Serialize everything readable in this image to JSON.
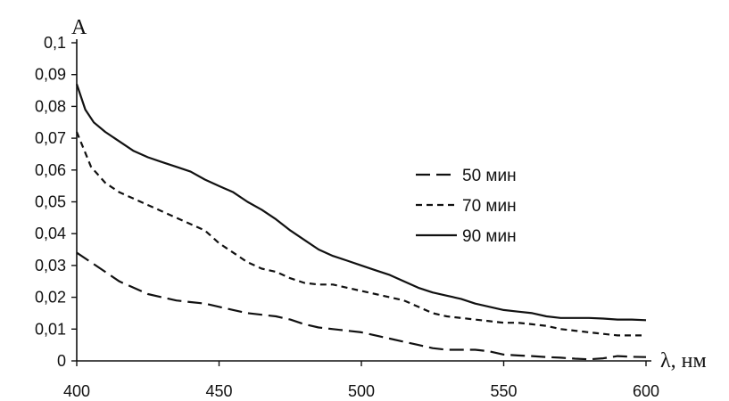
{
  "chart_data": {
    "type": "line",
    "title": "",
    "xlabel": "λ, нм",
    "ylabel": "A",
    "xlim": [
      400,
      600
    ],
    "ylim": [
      0,
      0.1
    ],
    "x_ticks": [
      "400",
      "450",
      "500",
      "550",
      "600"
    ],
    "y_ticks": [
      "0",
      "0,01",
      "0,02",
      "0,03",
      "0,04",
      "0,05",
      "0,06",
      "0,07",
      "0,08",
      "0,09",
      "0,1"
    ],
    "grid": false,
    "legend_position": "right",
    "series": [
      {
        "name": "50 мин",
        "line_style": "long-dash",
        "color": "#111111",
        "x": [
          400,
          405,
          410,
          415,
          420,
          425,
          430,
          435,
          440,
          445,
          450,
          455,
          460,
          465,
          470,
          475,
          480,
          485,
          490,
          495,
          500,
          505,
          510,
          515,
          520,
          525,
          530,
          535,
          540,
          545,
          550,
          555,
          560,
          565,
          570,
          575,
          580,
          585,
          590,
          595,
          600
        ],
        "y": [
          0.034,
          0.031,
          0.028,
          0.025,
          0.023,
          0.021,
          0.02,
          0.019,
          0.0185,
          0.018,
          0.017,
          0.016,
          0.015,
          0.0145,
          0.014,
          0.013,
          0.0115,
          0.0105,
          0.01,
          0.0095,
          0.009,
          0.008,
          0.007,
          0.006,
          0.005,
          0.004,
          0.0035,
          0.0035,
          0.0035,
          0.003,
          0.002,
          0.0017,
          0.0015,
          0.0012,
          0.001,
          0.0007,
          0.0005,
          0.0008,
          0.0015,
          0.0013,
          0.0012
        ]
      },
      {
        "name": "70 мин",
        "line_style": "short-dash",
        "color": "#111111",
        "x": [
          400,
          405,
          410,
          415,
          420,
          425,
          430,
          435,
          440,
          445,
          450,
          455,
          460,
          465,
          470,
          475,
          480,
          485,
          490,
          495,
          500,
          505,
          510,
          515,
          520,
          525,
          530,
          535,
          540,
          545,
          550,
          555,
          560,
          565,
          570,
          575,
          580,
          585,
          590,
          595,
          600
        ],
        "y": [
          0.072,
          0.061,
          0.056,
          0.053,
          0.051,
          0.049,
          0.047,
          0.045,
          0.043,
          0.041,
          0.037,
          0.034,
          0.031,
          0.029,
          0.028,
          0.026,
          0.0245,
          0.024,
          0.024,
          0.023,
          0.022,
          0.021,
          0.02,
          0.019,
          0.017,
          0.015,
          0.014,
          0.0135,
          0.013,
          0.0125,
          0.012,
          0.012,
          0.0115,
          0.011,
          0.01,
          0.0095,
          0.009,
          0.0085,
          0.008,
          0.008,
          0.008
        ]
      },
      {
        "name": "90 мин",
        "line_style": "solid",
        "color": "#111111",
        "x": [
          400,
          403,
          406,
          410,
          415,
          420,
          425,
          430,
          435,
          440,
          445,
          450,
          455,
          460,
          465,
          470,
          475,
          480,
          485,
          490,
          495,
          500,
          505,
          510,
          515,
          520,
          525,
          530,
          535,
          540,
          545,
          550,
          555,
          560,
          565,
          570,
          575,
          580,
          585,
          590,
          595,
          600
        ],
        "y": [
          0.087,
          0.079,
          0.075,
          0.072,
          0.069,
          0.066,
          0.064,
          0.0625,
          0.061,
          0.0595,
          0.057,
          0.055,
          0.053,
          0.05,
          0.0475,
          0.0445,
          0.041,
          0.038,
          0.035,
          0.033,
          0.0315,
          0.03,
          0.0285,
          0.027,
          0.025,
          0.023,
          0.0215,
          0.0205,
          0.0195,
          0.018,
          0.017,
          0.016,
          0.0155,
          0.015,
          0.014,
          0.0135,
          0.0135,
          0.0135,
          0.0133,
          0.013,
          0.013,
          0.0128
        ]
      }
    ]
  }
}
